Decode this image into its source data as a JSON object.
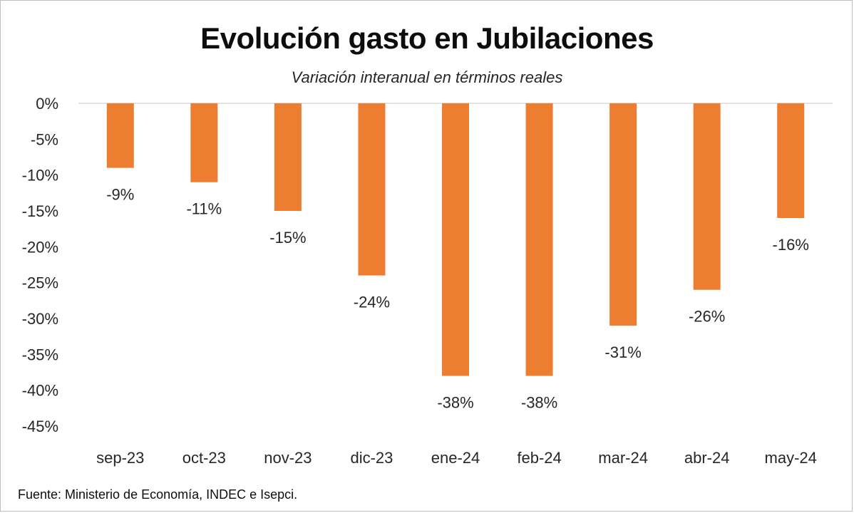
{
  "chart_data": {
    "type": "bar",
    "title": "Evolución gasto en Jubilaciones",
    "subtitle": "Variación interanual en términos reales",
    "categories": [
      "sep-23",
      "oct-23",
      "nov-23",
      "dic-23",
      "ene-24",
      "feb-24",
      "mar-24",
      "abr-24",
      "may-24"
    ],
    "values": [
      -9,
      -11,
      -15,
      -24,
      -38,
      -38,
      -31,
      -26,
      -16
    ],
    "data_labels": [
      "-9%",
      "-11%",
      "-15%",
      "-24%",
      "-38%",
      "-38%",
      "-31%",
      "-26%",
      "-16%"
    ],
    "y_ticks": [
      0,
      -5,
      -10,
      -15,
      -20,
      -25,
      -30,
      -35,
      -40,
      -45
    ],
    "y_tick_labels": [
      "0%",
      "-5%",
      "-10%",
      "-15%",
      "-20%",
      "-25%",
      "-30%",
      "-35%",
      "-40%",
      "-45%"
    ],
    "ylim": [
      -45,
      0
    ],
    "grid": false,
    "legend": "none",
    "bar_color": "#ed7d31",
    "source": "Fuente: Ministerio de Economía, INDEC e Isepci."
  }
}
